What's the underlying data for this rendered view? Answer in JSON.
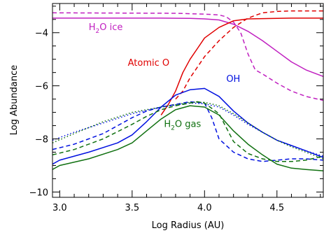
{
  "chart_data": {
    "type": "line",
    "xlabel": "Log Radius (AU)",
    "ylabel": "Log Abundance",
    "xlim": [
      2.95,
      4.82
    ],
    "ylim": [
      -10.2,
      -2.9
    ],
    "x_ticks": [
      {
        "value": 3.0,
        "label": "3.0"
      },
      {
        "value": 3.5,
        "label": "3.5"
      },
      {
        "value": 4.0,
        "label": "4.0"
      },
      {
        "value": 4.5,
        "label": "4.5"
      }
    ],
    "x_minor_step": 0.1,
    "y_ticks": [
      {
        "value": -4,
        "label": "−4"
      },
      {
        "value": -6,
        "label": "−6"
      },
      {
        "value": -8,
        "label": "−8"
      },
      {
        "value": -10,
        "label": "−10"
      }
    ],
    "y_minor_step": 0.5,
    "grid": false,
    "legend": "none",
    "annotations": [
      {
        "name": "h2o-ice",
        "base": "H",
        "sub": "2",
        "rest": "O ice",
        "x": 3.2,
        "y": -3.9,
        "color": "#c020c0"
      },
      {
        "name": "atomic-o",
        "text": "Atomic O",
        "x": 3.47,
        "y": -5.25,
        "color": "#e00000"
      },
      {
        "name": "oh",
        "text": "OH",
        "x": 4.15,
        "y": -5.85,
        "color": "#0010e0"
      },
      {
        "name": "h2o-gas",
        "base": "H",
        "sub": "2",
        "rest": "O gas",
        "x": 3.72,
        "y": -7.55,
        "color": "#107010"
      }
    ],
    "series": [
      {
        "color": "#c020c0",
        "dash": "solid",
        "x": [
          2.95,
          3.7,
          3.9,
          4.0,
          4.1,
          4.2,
          4.3,
          4.4,
          4.5,
          4.6,
          4.7,
          4.82
        ],
        "y": [
          -3.45,
          -3.45,
          -3.46,
          -3.48,
          -3.52,
          -3.68,
          -3.95,
          -4.3,
          -4.7,
          -5.1,
          -5.4,
          -5.65
        ]
      },
      {
        "color": "#c020c0",
        "dash": "dashed",
        "x": [
          2.95,
          3.8,
          4.0,
          4.1,
          4.15,
          4.2,
          4.25,
          4.3,
          4.35,
          4.4,
          4.5,
          4.6,
          4.7,
          4.82
        ],
        "y": [
          -3.25,
          -3.27,
          -3.3,
          -3.33,
          -3.4,
          -3.6,
          -4.0,
          -4.8,
          -5.4,
          -5.55,
          -5.9,
          -6.2,
          -6.4,
          -6.55
        ]
      },
      {
        "color": "#e00000",
        "dash": "solid",
        "x": [
          3.7,
          3.75,
          3.8,
          3.85,
          3.9,
          3.95,
          4.0,
          4.1,
          4.2,
          4.3,
          4.4,
          4.5,
          4.6,
          4.82
        ],
        "y": [
          -7.1,
          -6.7,
          -6.2,
          -5.5,
          -5.0,
          -4.6,
          -4.2,
          -3.8,
          -3.55,
          -3.48,
          -3.47,
          -3.46,
          -3.45,
          -3.45
        ]
      },
      {
        "color": "#e00000",
        "dash": "dashed",
        "x": [
          3.8,
          3.85,
          3.9,
          3.95,
          4.0,
          4.1,
          4.2,
          4.3,
          4.4,
          4.5,
          4.6,
          4.82
        ],
        "y": [
          -6.5,
          -6.2,
          -5.7,
          -5.3,
          -4.9,
          -4.3,
          -3.8,
          -3.45,
          -3.25,
          -3.2,
          -3.18,
          -3.18
        ]
      },
      {
        "color": "#0010e0",
        "dash": "solid",
        "x": [
          2.95,
          3.0,
          3.2,
          3.4,
          3.5,
          3.6,
          3.7,
          3.8,
          3.9,
          4.0,
          4.1,
          4.2,
          4.3,
          4.4,
          4.5,
          4.6,
          4.7,
          4.82
        ],
        "y": [
          -8.95,
          -8.8,
          -8.5,
          -8.15,
          -7.85,
          -7.35,
          -6.8,
          -6.35,
          -6.15,
          -6.1,
          -6.4,
          -6.95,
          -7.4,
          -7.75,
          -8.05,
          -8.25,
          -8.45,
          -8.7
        ]
      },
      {
        "color": "#0010e0",
        "dash": "dashed",
        "x": [
          2.95,
          3.1,
          3.3,
          3.5,
          3.6,
          3.7,
          3.8,
          3.9,
          4.0,
          4.05,
          4.1,
          4.2,
          4.3,
          4.4,
          4.5,
          4.6,
          4.7,
          4.82
        ],
        "y": [
          -8.4,
          -8.2,
          -7.8,
          -7.2,
          -6.95,
          -6.8,
          -6.7,
          -6.6,
          -6.65,
          -7.2,
          -8.0,
          -8.5,
          -8.75,
          -8.85,
          -8.8,
          -8.75,
          -8.75,
          -8.8
        ]
      },
      {
        "color": "#0010e0",
        "dash": "dotted",
        "x": [
          2.95,
          3.1,
          3.3,
          3.5,
          3.7,
          3.9,
          4.0,
          4.1,
          4.2,
          4.3,
          4.4,
          4.5,
          4.6,
          4.7,
          4.82
        ],
        "y": [
          -8.05,
          -7.75,
          -7.4,
          -7.05,
          -6.8,
          -6.65,
          -6.68,
          -6.8,
          -7.1,
          -7.45,
          -7.75,
          -8.05,
          -8.25,
          -8.45,
          -8.65
        ]
      },
      {
        "color": "#107010",
        "dash": "solid",
        "x": [
          2.95,
          3.0,
          3.2,
          3.4,
          3.5,
          3.6,
          3.7,
          3.8,
          3.9,
          4.0,
          4.1,
          4.2,
          4.3,
          4.4,
          4.5,
          4.6,
          4.7,
          4.82
        ],
        "y": [
          -9.15,
          -9.0,
          -8.75,
          -8.4,
          -8.15,
          -7.7,
          -7.25,
          -6.9,
          -6.75,
          -6.8,
          -7.1,
          -7.7,
          -8.2,
          -8.6,
          -8.95,
          -9.1,
          -9.15,
          -9.2
        ]
      },
      {
        "color": "#107010",
        "dash": "dashed",
        "x": [
          2.95,
          3.1,
          3.3,
          3.5,
          3.6,
          3.7,
          3.8,
          3.9,
          3.95,
          4.0,
          4.1,
          4.2,
          4.3,
          4.4,
          4.5,
          4.6,
          4.7,
          4.82
        ],
        "y": [
          -8.6,
          -8.4,
          -8.0,
          -7.45,
          -7.15,
          -6.9,
          -6.75,
          -6.65,
          -6.6,
          -6.65,
          -7.05,
          -8.1,
          -8.55,
          -8.75,
          -8.85,
          -8.85,
          -8.8,
          -8.65
        ]
      },
      {
        "color": "#107010",
        "dash": "dotted",
        "x": [
          2.95,
          3.1,
          3.3,
          3.5,
          3.7,
          3.9,
          4.0,
          4.1,
          4.2,
          4.3,
          4.4,
          4.5,
          4.6,
          4.7,
          4.82
        ],
        "y": [
          -8.15,
          -7.8,
          -7.35,
          -7.0,
          -6.8,
          -6.62,
          -6.62,
          -6.75,
          -7.05,
          -7.4,
          -7.75,
          -8.05,
          -8.3,
          -8.5,
          -8.75
        ]
      }
    ]
  }
}
